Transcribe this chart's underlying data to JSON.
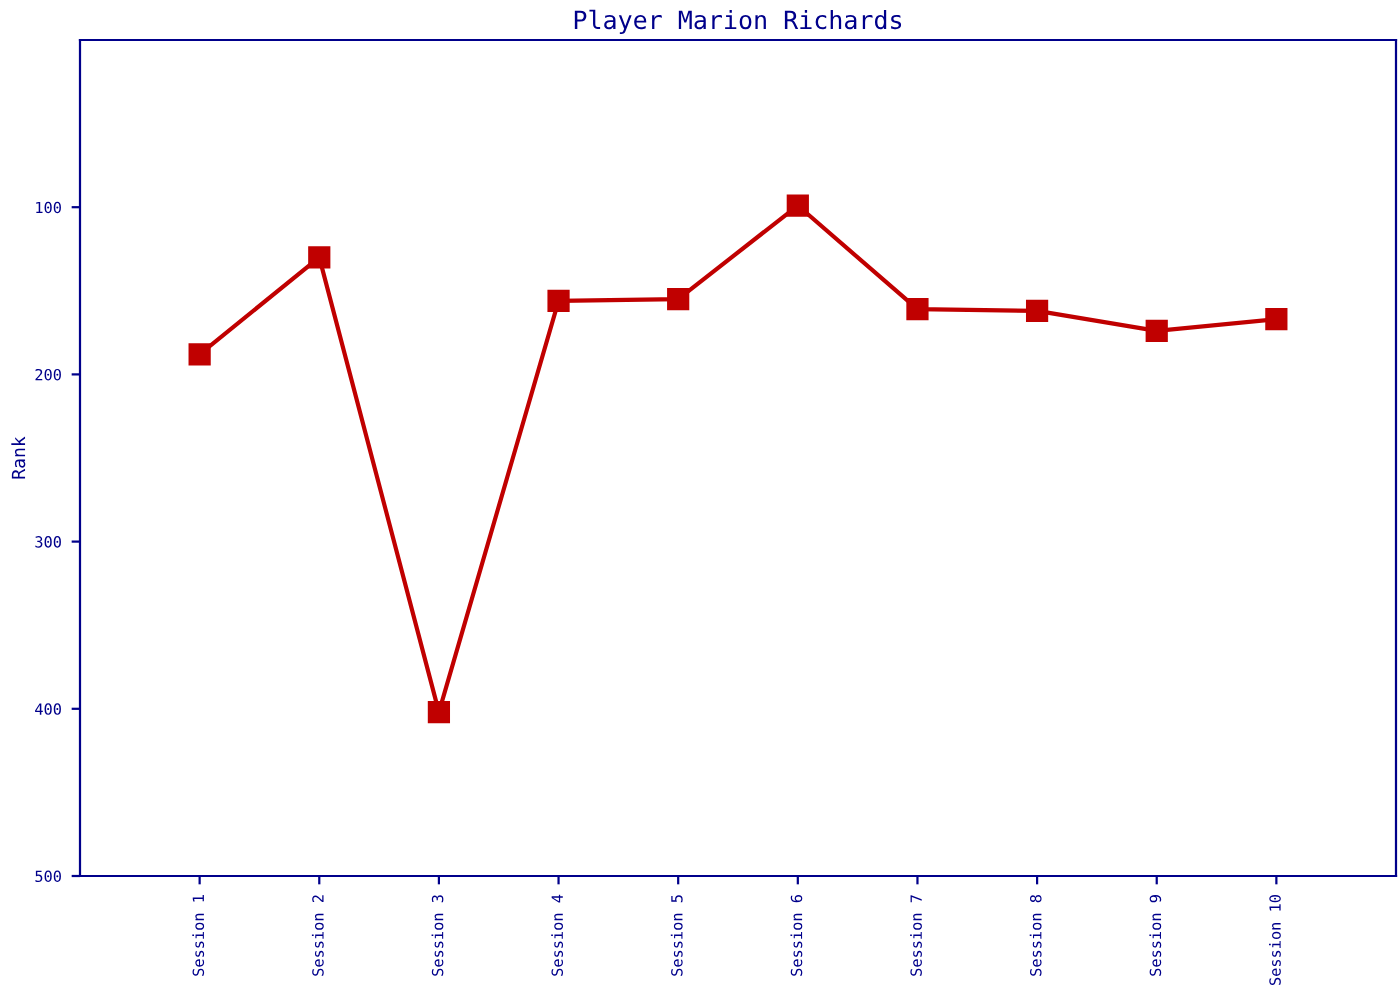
{
  "chart_data": {
    "type": "line",
    "title": "Player Marion Richards",
    "ylabel": "Rank",
    "categories": [
      "Session 1",
      "Session 2",
      "Session 3",
      "Session 4",
      "Session 5",
      "Session 6",
      "Session 7",
      "Session 8",
      "Session 9",
      "Session 10"
    ],
    "series": [
      {
        "color": "#c00000",
        "values": [
          188,
          130,
          402,
          156,
          155,
          99,
          161,
          162,
          174,
          167
        ]
      }
    ],
    "ylim": [
      500,
      0
    ],
    "yticks": [
      100,
      200,
      300,
      400,
      500
    ],
    "marker": "square",
    "line_style": "solid",
    "grid": false,
    "legend": false
  }
}
